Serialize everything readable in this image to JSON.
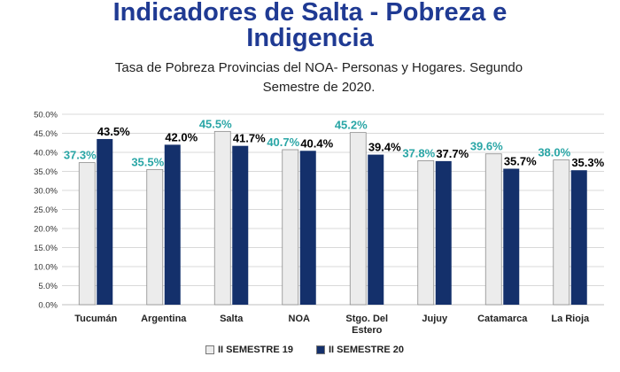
{
  "title_lines": [
    "Indicadores de Salta - Pobreza e",
    "Indigencia"
  ],
  "subtitle_lines": [
    "Tasa de Pobreza Provincias del NOA- Personas y Hogares. Segundo",
    "Semestre de 2020."
  ],
  "colors": {
    "title": "#1f3a93",
    "series1_fill": "#ececec",
    "series1_label": "#2aa6a6",
    "series2_fill": "#14306b",
    "series2_label": "#000000"
  },
  "chart_data": {
    "type": "bar",
    "categories": [
      [
        "Tucumán"
      ],
      [
        "Argentina"
      ],
      [
        "Salta"
      ],
      [
        "NOA"
      ],
      [
        "Stgo. Del",
        "Estero"
      ],
      [
        "Jujuy"
      ],
      [
        "Catamarca"
      ],
      [
        "La Rioja"
      ]
    ],
    "series": [
      {
        "name": "II SEMESTRE 19",
        "values": [
          37.3,
          35.5,
          45.5,
          40.7,
          45.2,
          37.8,
          39.6,
          38.0
        ],
        "labels": [
          "37.3%",
          "35.5%",
          "45.5%",
          "40.7%",
          "45.2%",
          "37.8%",
          "39.6%",
          "38.0%"
        ]
      },
      {
        "name": "II SEMESTRE 20",
        "values": [
          43.5,
          42.0,
          41.7,
          40.4,
          39.4,
          37.7,
          35.7,
          35.3
        ],
        "labels": [
          "43.5%",
          "42.0%",
          "41.7%",
          "40.4%",
          "39.4%",
          "37.7%",
          "35.7%",
          "35.3%"
        ]
      }
    ],
    "ylim": [
      0,
      50
    ],
    "yticks": [
      "0.0%",
      "5.0%",
      "10.0%",
      "15.0%",
      "20.0%",
      "25.0%",
      "30.0%",
      "35.0%",
      "40.0%",
      "45.0%",
      "50.0%"
    ],
    "grid": true,
    "legend_position": "bottom"
  }
}
